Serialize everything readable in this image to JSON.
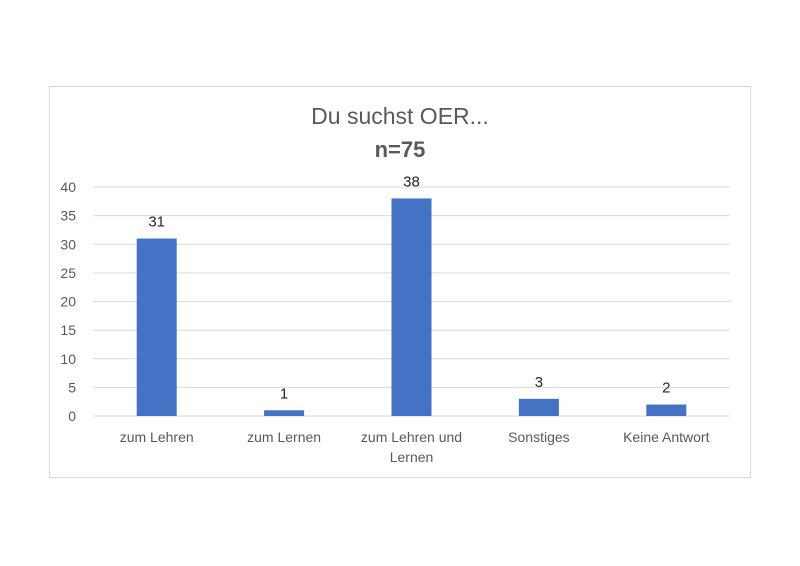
{
  "chart_data": {
    "type": "bar",
    "title": "Du suchst OER...",
    "subtitle": "n=75",
    "categories": [
      [
        "zum Lehren"
      ],
      [
        "zum Lernen"
      ],
      [
        "zum Lehren und",
        "Lernen"
      ],
      [
        "Sonstiges"
      ],
      [
        "Keine Antwort"
      ]
    ],
    "values": [
      31,
      1,
      38,
      3,
      2
    ],
    "data_labels": [
      "31",
      "1",
      "38",
      "3",
      "2"
    ],
    "ylim": [
      0,
      40
    ],
    "yticks": [
      "0",
      "5",
      "10",
      "15",
      "20",
      "25",
      "30",
      "35",
      "40"
    ],
    "grid": true,
    "legend": "none",
    "bar_color": "#4472c4",
    "grid_color": "#d9d9d9"
  }
}
